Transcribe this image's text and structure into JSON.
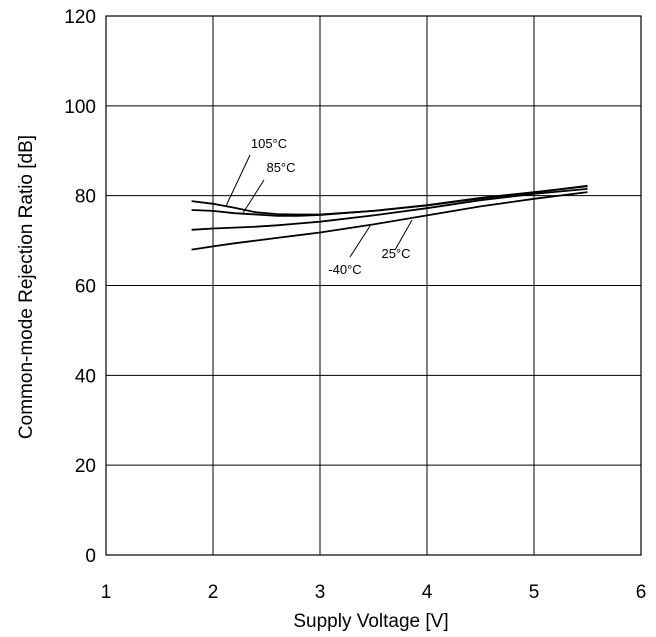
{
  "chart_data": {
    "type": "line",
    "title": "",
    "xlabel": "Supply Voltage [V]",
    "ylabel": "Common-mode Rejection Ratio [dB]",
    "xlim": [
      1,
      6
    ],
    "ylim": [
      0,
      120
    ],
    "xticks": [
      "1",
      "2",
      "3",
      "4",
      "5",
      "6"
    ],
    "yticks": [
      "0",
      "20",
      "40",
      "60",
      "80",
      "100",
      "120"
    ],
    "grid": true,
    "series": [
      {
        "name": "105°C",
        "x": [
          1.8,
          2.0,
          2.2,
          2.4,
          2.6,
          2.8,
          3.0,
          3.5,
          4.0,
          4.5,
          5.0,
          5.5
        ],
        "y": [
          78.8,
          78.2,
          77.3,
          76.3,
          75.9,
          75.8,
          75.8,
          76.6,
          77.8,
          79.4,
          80.7,
          82.2
        ]
      },
      {
        "name": "85°C",
        "x": [
          1.8,
          2.0,
          2.2,
          2.4,
          2.6,
          2.8,
          3.0,
          3.5,
          4.0,
          4.5,
          5.0,
          5.5
        ],
        "y": [
          76.8,
          76.6,
          76.1,
          75.8,
          75.5,
          75.5,
          75.7,
          76.6,
          77.9,
          79.5,
          80.8,
          82.1
        ]
      },
      {
        "name": "25°C",
        "x": [
          1.8,
          2.0,
          2.2,
          2.4,
          2.6,
          2.8,
          3.0,
          3.5,
          4.0,
          4.5,
          5.0,
          5.5
        ],
        "y": [
          72.4,
          72.7,
          72.9,
          73.1,
          73.4,
          73.8,
          74.2,
          75.6,
          77.2,
          79.0,
          80.4,
          81.5
        ]
      },
      {
        "name": "-40°C",
        "x": [
          1.8,
          2.0,
          2.2,
          2.4,
          2.6,
          2.8,
          3.0,
          3.5,
          4.0,
          4.5,
          5.0,
          5.5
        ],
        "y": [
          68.0,
          68.7,
          69.4,
          70.0,
          70.6,
          71.2,
          71.8,
          73.6,
          75.6,
          77.6,
          79.3,
          80.8
        ]
      }
    ],
    "annotations": [
      {
        "text": "105°C",
        "series": "105°C"
      },
      {
        "text": "85°C",
        "series": "85°C"
      },
      {
        "text": "25°C",
        "series": "25°C"
      },
      {
        "text": "-40°C",
        "series": "-40°C"
      }
    ]
  }
}
